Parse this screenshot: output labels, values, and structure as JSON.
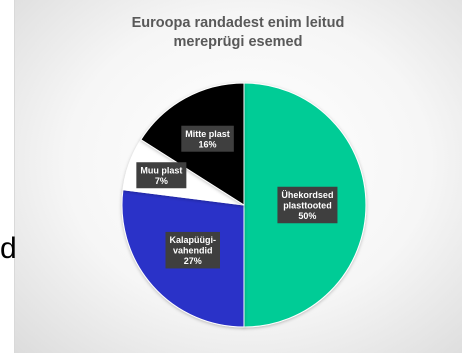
{
  "left_fragment": "d",
  "chart_data": {
    "type": "pie",
    "title_lines": [
      "Euroopa randadest enim leitud",
      "mereprügi esemed"
    ],
    "slices": [
      {
        "label_lines": [
          "Ühekordsed",
          "plasttooted"
        ],
        "value": 50,
        "value_label": "50%",
        "color": "#00cc96"
      },
      {
        "label_lines": [
          "Kalapüügi-",
          "vahendid"
        ],
        "value": 27,
        "value_label": "27%",
        "color": "#2b30c8"
      },
      {
        "label_lines": [
          "Muu plast"
        ],
        "value": 7,
        "value_label": "7%",
        "color": "#ffffff"
      },
      {
        "label_lines": [
          "Mitte plast"
        ],
        "value": 16,
        "value_label": "16%",
        "color": "#000000"
      }
    ],
    "legend": "none",
    "label_style": {
      "background": "#3f3f3f",
      "text_color": "#ffffff"
    }
  }
}
